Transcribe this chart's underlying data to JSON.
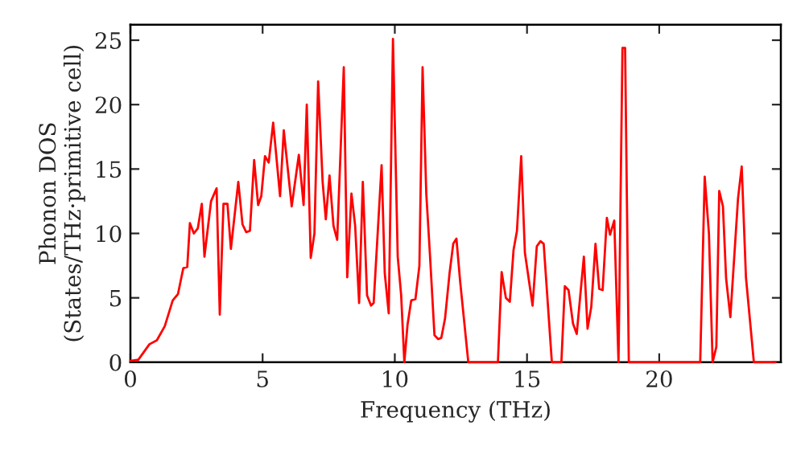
{
  "chart_data": {
    "type": "line",
    "xlabel": "Frequency (THz)",
    "ylabel": "Phonon DOS\n(States/THz·primitive cell)",
    "xlim": [
      0,
      24.6
    ],
    "ylim": [
      0,
      26.2
    ],
    "xticks": [
      0,
      5,
      10,
      15,
      20
    ],
    "yticks": [
      0,
      5,
      10,
      15,
      20,
      25
    ],
    "grid": false,
    "marker": "none",
    "line_style": "solid",
    "series": [
      {
        "color": "#ff0000",
        "x": [
          0,
          0.3,
          0.72,
          1.0,
          1.3,
          1.6,
          1.8,
          2.0,
          2.15,
          2.25,
          2.4,
          2.55,
          2.7,
          2.8,
          3.05,
          3.26,
          3.38,
          3.52,
          3.67,
          3.8,
          4.08,
          4.24,
          4.38,
          4.52,
          4.68,
          4.83,
          4.95,
          5.09,
          5.23,
          5.4,
          5.66,
          5.8,
          6.1,
          6.37,
          6.55,
          6.67,
          6.82,
          6.96,
          7.1,
          7.27,
          7.39,
          7.53,
          7.68,
          7.82,
          8.07,
          8.2,
          8.36,
          8.5,
          8.65,
          8.79,
          8.95,
          9.1,
          9.2,
          9.5,
          9.62,
          9.77,
          9.93,
          10.11,
          10.24,
          10.36,
          10.48,
          10.62,
          10.78,
          10.93,
          11.05,
          11.19,
          11.33,
          11.5,
          11.64,
          11.76,
          11.9,
          12.07,
          12.21,
          12.33,
          12.47,
          12.78,
          13.9,
          14.04,
          14.2,
          14.35,
          14.49,
          14.62,
          14.78,
          14.92,
          15.21,
          15.37,
          15.51,
          15.63,
          15.94,
          16.3,
          16.43,
          16.57,
          16.74,
          16.88,
          17.15,
          17.29,
          17.43,
          17.59,
          17.73,
          17.86,
          18.02,
          18.14,
          18.3,
          18.46,
          18.61,
          18.71,
          18.85,
          21.55,
          21.72,
          21.88,
          22.02,
          22.16,
          22.27,
          22.41,
          22.53,
          22.69,
          22.98,
          23.12,
          23.28,
          23.58,
          24.4
        ],
        "values": [
          0.1,
          0.2,
          1.4,
          1.7,
          2.8,
          4.8,
          5.3,
          7.3,
          7.4,
          10.8,
          10.0,
          10.4,
          12.3,
          8.2,
          12.5,
          13.5,
          3.7,
          12.3,
          12.3,
          8.8,
          14.0,
          10.7,
          10.1,
          10.2,
          15.7,
          12.2,
          12.9,
          16.0,
          15.5,
          18.6,
          12.9,
          18.0,
          12.1,
          16.1,
          12.2,
          20.0,
          8.1,
          10.0,
          21.8,
          14.0,
          11.1,
          14.5,
          10.6,
          9.5,
          22.9,
          6.6,
          13.1,
          10.6,
          4.6,
          14.0,
          5.2,
          4.4,
          4.6,
          15.3,
          6.9,
          3.8,
          25.1,
          8.2,
          5.2,
          0,
          2.9,
          4.8,
          4.9,
          7.5,
          22.9,
          13.1,
          8.3,
          2.1,
          1.8,
          1.9,
          3.4,
          6.9,
          9.2,
          9.6,
          6.3,
          0,
          0,
          7.0,
          5.0,
          4.7,
          8.7,
          10.2,
          16.0,
          8.5,
          4.4,
          9.0,
          9.4,
          9.2,
          0,
          0,
          5.9,
          5.6,
          3.0,
          2.2,
          8.2,
          2.6,
          4.3,
          9.2,
          5.7,
          5.6,
          11.2,
          9.9,
          11.0,
          0,
          24.4,
          24.4,
          0,
          0,
          14.4,
          10.0,
          0,
          1.2,
          13.3,
          12.1,
          6.5,
          3.5,
          12.7,
          15.2,
          6.6,
          0,
          0
        ]
      }
    ]
  }
}
